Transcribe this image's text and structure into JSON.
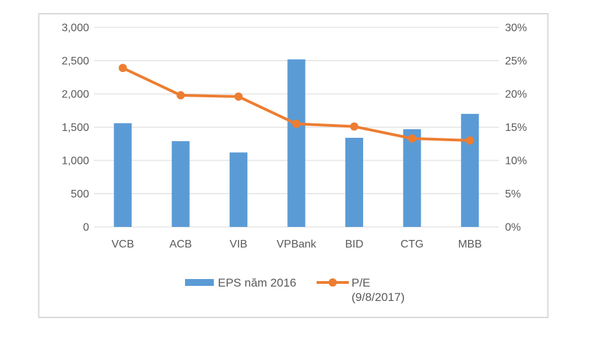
{
  "chart_data": {
    "type": "bar+line combo",
    "title": "",
    "xlabel": "",
    "ylabel": "",
    "categories": [
      "VCB",
      "ACB",
      "VIB",
      "VPBank",
      "BID",
      "CTG",
      "MBB"
    ],
    "series": [
      {
        "name": "EPS năm 2016",
        "type": "bar",
        "axis": "left",
        "color": "#5B9BD5",
        "values": [
          1560,
          1290,
          1120,
          2520,
          1340,
          1470,
          1700
        ]
      },
      {
        "name": "P/E (9/8/2017)",
        "type": "line",
        "axis": "right",
        "color": "#ED7D31",
        "values": [
          23.9,
          19.8,
          19.6,
          15.5,
          15.1,
          13.3,
          13.0
        ]
      }
    ],
    "left_axis": {
      "min": 0,
      "max": 3000,
      "step": 500,
      "tick_labels": [
        "0",
        "500",
        "1,000",
        "1,500",
        "2,000",
        "2,500",
        "3,000"
      ]
    },
    "right_axis": {
      "min": 0,
      "max": 30,
      "step": 5,
      "tick_labels": [
        "0%",
        "5%",
        "10%",
        "15%",
        "20%",
        "25%",
        "30%"
      ]
    },
    "grid": true,
    "legend_position": "bottom",
    "legend": {
      "bar_label": "EPS năm 2016",
      "line_label": "P/E",
      "line_label_line2": "(9/8/2017)"
    }
  },
  "style": {
    "bar_color": "#5B9BD5",
    "line_color": "#ED7D31",
    "grid_color": "#D9D9D9",
    "border_color": "#D9D9D9",
    "axis_text_color": "#595959",
    "background": "#FFFFFF"
  }
}
